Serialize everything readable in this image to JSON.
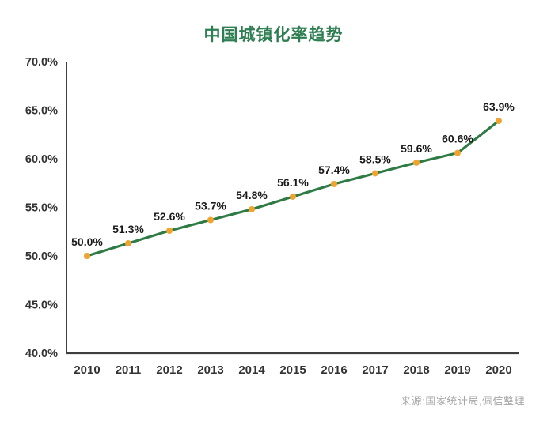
{
  "header": {
    "title": "中国城镇化率趋势",
    "title_color": "#2E7E52"
  },
  "chart_data": {
    "type": "line",
    "title": "中国城镇化率趋势",
    "categories": [
      "2010",
      "2011",
      "2012",
      "2013",
      "2014",
      "2015",
      "2016",
      "2017",
      "2018",
      "2019",
      "2020"
    ],
    "values": [
      50.0,
      51.3,
      52.6,
      53.7,
      54.8,
      56.1,
      57.4,
      58.5,
      59.6,
      60.6,
      63.9
    ],
    "data_labels": [
      "50.0%",
      "51.3%",
      "52.6%",
      "53.7%",
      "54.8%",
      "56.1%",
      "57.4%",
      "58.5%",
      "59.6%",
      "60.6%",
      "63.9%"
    ],
    "xlabel": "",
    "ylabel": "",
    "ylim": [
      40,
      70
    ],
    "y_ticks": [
      40,
      45,
      50,
      55,
      60,
      65,
      70
    ],
    "y_tick_labels": [
      "40.0%",
      "45.0%",
      "50.0%",
      "55.0%",
      "60.0%",
      "65.0%",
      "70.0%"
    ],
    "grid": false,
    "legend": false,
    "line_color": "#2E7B46",
    "marker_color": "#F0A42F",
    "axis_color": "#3F3F3F",
    "tick_text_color": "#333333",
    "data_label_color": "#1A1A1A"
  },
  "footer": {
    "source": "来源:国家统计局,佩信整理",
    "color": "#A6A6A6"
  }
}
